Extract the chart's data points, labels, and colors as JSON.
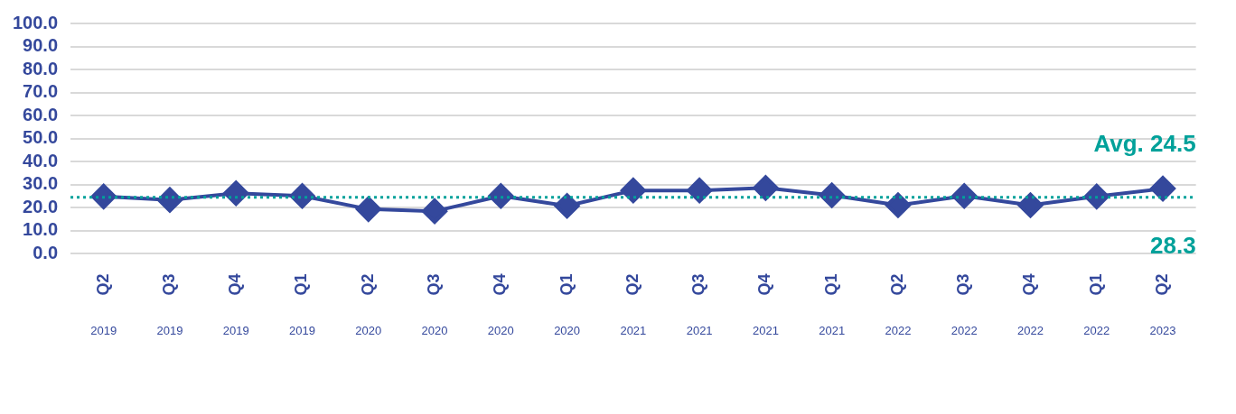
{
  "chart_data": {
    "type": "line",
    "categories": [
      "Q2\n2019",
      "Q3\n2019",
      "Q4\n2019",
      "Q1\n2019",
      "Q2\n2020",
      "Q3\n2020",
      "Q4\n2020",
      "Q1\n2020",
      "Q2\n2021",
      "Q3\n2021",
      "Q4\n2021",
      "Q1\n2021",
      "Q2\n2022",
      "Q3\n2022",
      "Q4\n2022",
      "Q1\n2022",
      "Q2\n2023"
    ],
    "series": [
      {
        "color": "#34489c",
        "values": [
          24.9,
          23.4,
          26.3,
          25.1,
          19.4,
          18.5,
          25.1,
          20.8,
          27.5,
          27.5,
          28.6,
          25.4,
          21.1,
          25.1,
          21.1,
          24.9,
          28.3
        ],
        "value_labels": [
          null,
          null,
          null,
          null,
          null,
          null,
          null,
          null,
          null,
          null,
          null,
          null,
          null,
          null,
          null,
          null,
          "28.3"
        ]
      }
    ],
    "ylim": [
      0,
      100
    ],
    "yticks": [
      {
        "value": 0,
        "label": "0.0"
      },
      {
        "value": 10,
        "label": "10.0"
      },
      {
        "value": 20,
        "label": "20.0"
      },
      {
        "value": 30,
        "label": "30.0"
      },
      {
        "value": 40,
        "label": "40.0"
      },
      {
        "value": 50,
        "label": "50.0"
      },
      {
        "value": 60,
        "label": "60.0"
      },
      {
        "value": 70,
        "label": "70.0"
      },
      {
        "value": 80,
        "label": "80.0"
      },
      {
        "value": 90,
        "label": "90.0"
      },
      {
        "value": 100,
        "label": "100.0"
      }
    ],
    "grid": "y",
    "marker": "diamond",
    "line_style": "solid",
    "legend": false,
    "ref_lines": [
      {
        "axis": "y",
        "value": 24.5,
        "label": "Avg. 24.5",
        "color": "#00a19a",
        "line_style": "dotted"
      }
    ]
  }
}
